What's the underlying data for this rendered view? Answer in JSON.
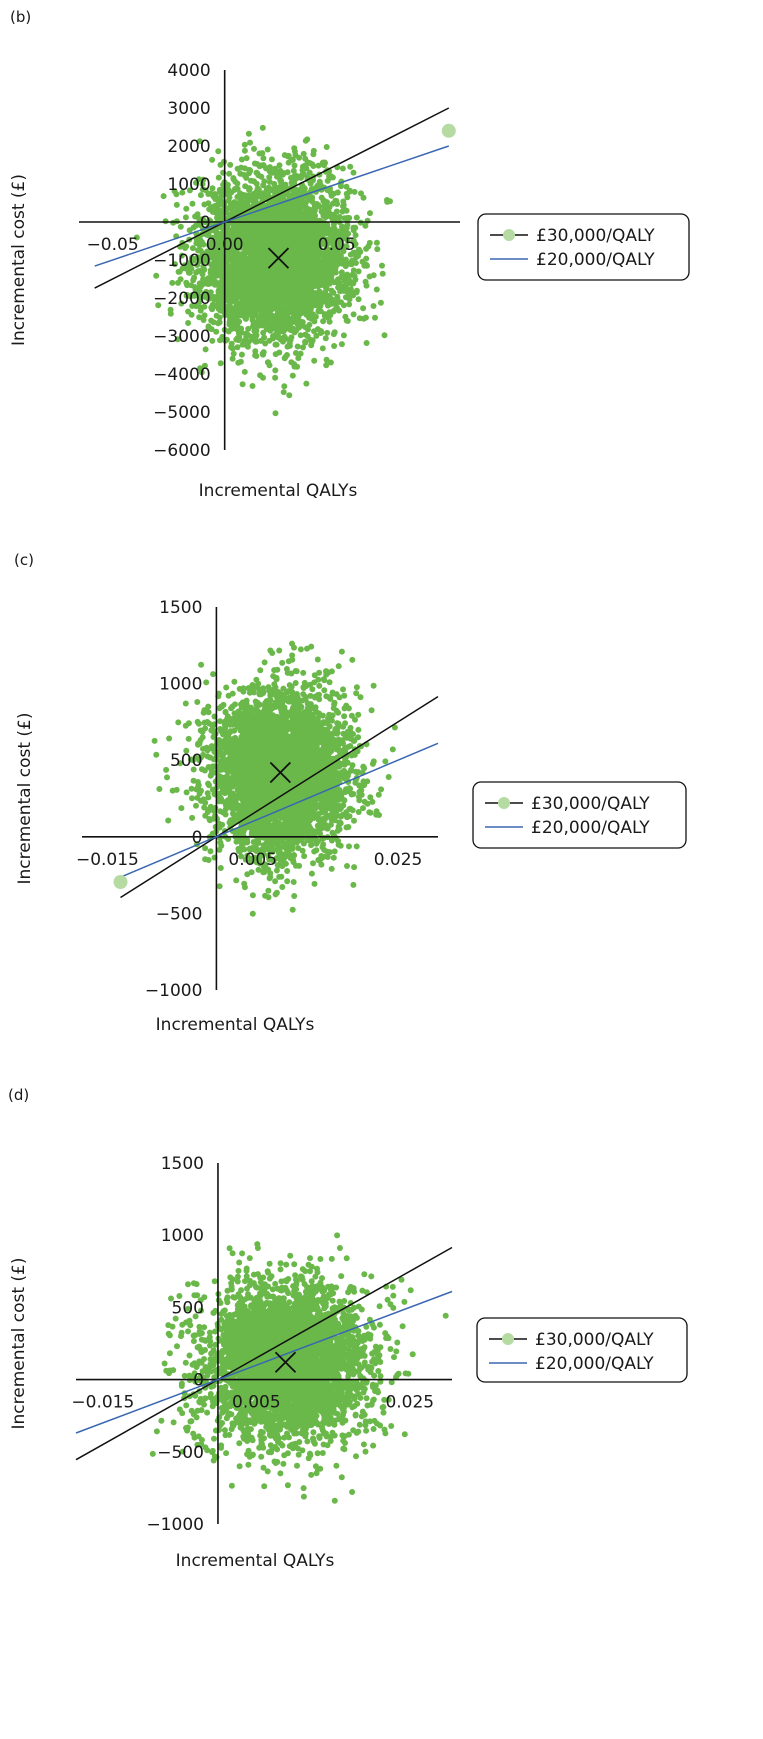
{
  "chart_data": [
    {
      "type": "scatter",
      "panel": "(b)",
      "title": "",
      "xlabel": "Incremental QALYs",
      "ylabel": "Incremental cost (£)",
      "xlim": [
        -0.065,
        0.105
      ],
      "ylim": [
        -6000,
        4000
      ],
      "x_ticks": [
        "−0.05",
        "0.00",
        "0.05"
      ],
      "x_tick_values": [
        -0.05,
        0.0,
        0.05
      ],
      "y_ticks": [
        "4000",
        "3000",
        "2000",
        "1000",
        "0",
        "−1000",
        "−2000",
        "−3000",
        "−4000",
        "−5000",
        "−6000"
      ],
      "y_tick_values": [
        4000,
        3000,
        2000,
        1000,
        0,
        -1000,
        -2000,
        -3000,
        -4000,
        -5000,
        -6000
      ],
      "cloud": {
        "center_x": 0.022,
        "center_y": -950,
        "sd_x": 0.0165,
        "sd_y": 1050,
        "n_points": 4200,
        "color": "#6ab84a"
      },
      "mean_marker": {
        "x": 0.024,
        "y": -950
      },
      "thresholds": [
        {
          "name": "£30,000/QALY",
          "slope": 30000,
          "color": "#111111",
          "x_range": [
            -0.058,
            0.1
          ]
        },
        {
          "name": "£20,000/QALY",
          "slope": 20000,
          "color": "#3a67b1",
          "x_range": [
            -0.058,
            0.1
          ]
        }
      ],
      "highlight_point": {
        "x": 0.1,
        "y": 2400,
        "color": "#b5dba3"
      },
      "legend": {
        "placement": "right",
        "entries": [
          "£30,000/QALY",
          "£20,000/QALY"
        ]
      }
    },
    {
      "type": "scatter",
      "panel": "(c)",
      "title": "",
      "xlabel": "Incremental QALYs",
      "ylabel": "Incremental cost (£)",
      "xlim": [
        -0.0185,
        0.0305
      ],
      "ylim": [
        -1000,
        1500
      ],
      "x_ticks": [
        "−0.015",
        "0.005",
        "0.025"
      ],
      "x_tick_values": [
        -0.015,
        0.005,
        0.025
      ],
      "y_ticks": [
        "1500",
        "1000",
        "500",
        "0",
        "−500",
        "−1000"
      ],
      "y_tick_values": [
        1500,
        1000,
        500,
        0,
        -500,
        -1000
      ],
      "cloud": {
        "center_x": 0.0088,
        "center_y": 420,
        "sd_x": 0.0046,
        "sd_y": 260,
        "n_points": 4200,
        "color": "#6ab84a"
      },
      "mean_marker": {
        "x": 0.0088,
        "y": 420
      },
      "thresholds": [
        {
          "name": "£30,000/QALY",
          "slope": 30000,
          "color": "#111111",
          "x_range": [
            -0.0132,
            0.0305
          ]
        },
        {
          "name": "£20,000/QALY",
          "slope": 20000,
          "color": "#3a67b1",
          "x_range": [
            -0.013,
            0.0305
          ]
        }
      ],
      "highlight_point": {
        "x": -0.0132,
        "y": -295,
        "color": "#b5dba3"
      },
      "legend": {
        "placement": "right",
        "entries": [
          "£30,000/QALY",
          "£20,000/QALY"
        ]
      }
    },
    {
      "type": "scatter",
      "panel": "(d)",
      "title": "",
      "xlabel": "Incremental QALYs",
      "ylabel": "Incremental cost (£)",
      "xlim": [
        -0.0185,
        0.0305
      ],
      "ylim": [
        -1000,
        1500
      ],
      "x_ticks": [
        "−0.015",
        "0.005",
        "0.025"
      ],
      "x_tick_values": [
        -0.015,
        0.005,
        0.025
      ],
      "y_ticks": [
        "1500",
        "1000",
        "500",
        "0",
        "−500",
        "−1000"
      ],
      "y_tick_values": [
        1500,
        1000,
        500,
        0,
        -500,
        -1000
      ],
      "cloud": {
        "center_x": 0.0088,
        "center_y": 110,
        "sd_x": 0.0052,
        "sd_y": 260,
        "n_points": 4200,
        "color": "#6ab84a"
      },
      "mean_marker": {
        "x": 0.0088,
        "y": 120
      },
      "thresholds": [
        {
          "name": "£30,000/QALY",
          "slope": 30000,
          "color": "#111111",
          "x_range": [
            -0.0185,
            0.0305
          ]
        },
        {
          "name": "£20,000/QALY",
          "slope": 20000,
          "color": "#3a67b1",
          "x_range": [
            -0.0185,
            0.0305
          ]
        }
      ],
      "highlight_point": null,
      "legend": {
        "placement": "right",
        "entries": [
          "£30,000/QALY",
          "£20,000/QALY"
        ]
      }
    }
  ]
}
